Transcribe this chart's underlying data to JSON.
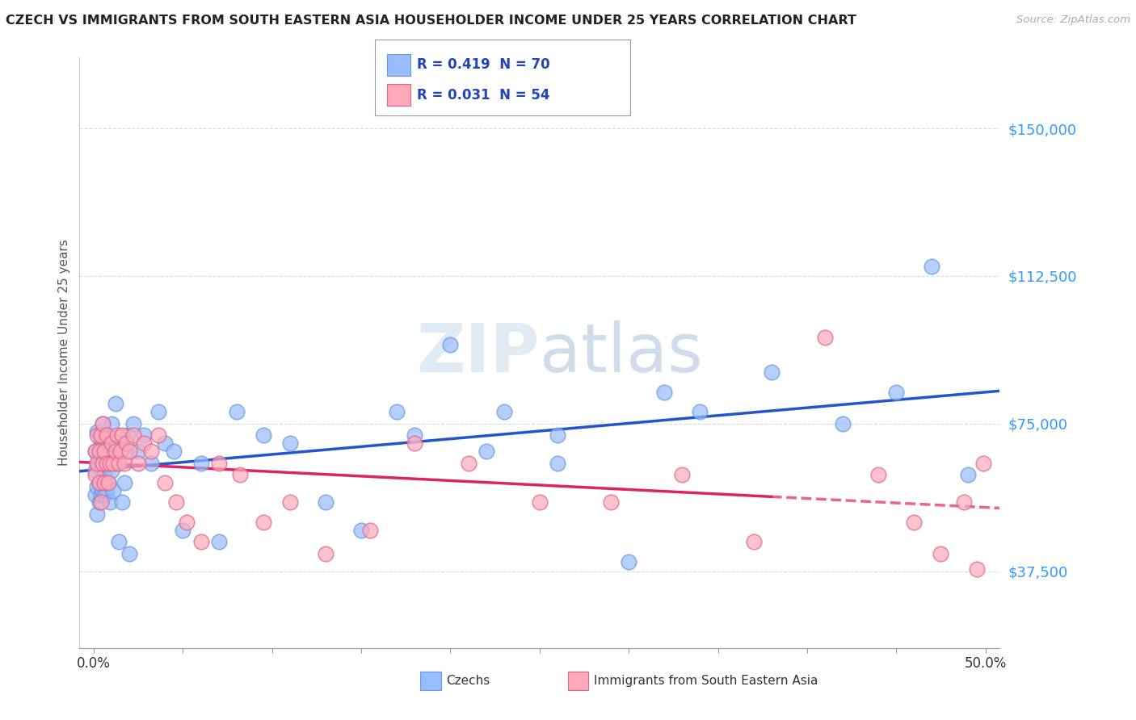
{
  "title": "CZECH VS IMMIGRANTS FROM SOUTH EASTERN ASIA HOUSEHOLDER INCOME UNDER 25 YEARS CORRELATION CHART",
  "source": "Source: ZipAtlas.com",
  "ylabel": "Householder Income Under 25 years",
  "xlim": [
    0.0,
    0.5
  ],
  "ylim": [
    18000,
    168000
  ],
  "yticks": [
    37500,
    75000,
    112500,
    150000
  ],
  "ytick_labels": [
    "$37,500",
    "$75,000",
    "$112,500",
    "$150,000"
  ],
  "background_color": "#ffffff",
  "grid_color": "#d0dde8",
  "czech_color": "#99bbff",
  "czech_edge_color": "#6699dd",
  "immigrant_color": "#ffaabb",
  "immigrant_edge_color": "#dd6688",
  "czech_line_color": "#2255cc",
  "immigrant_line_color": "#dd2266",
  "czech_R": 0.419,
  "czech_N": 70,
  "immigrant_R": 0.031,
  "immigrant_N": 54,
  "watermark": "ZIPAtlas",
  "legend_label1": "R = 0.419  N = 70",
  "legend_label2": "R = 0.031  N = 54",
  "bottom_label1": "Czechs",
  "bottom_label2": "Immigrants from South Eastern Asia",
  "czech_x": [
    0.001,
    0.001,
    0.001,
    0.002,
    0.002,
    0.002,
    0.002,
    0.003,
    0.003,
    0.003,
    0.003,
    0.004,
    0.004,
    0.004,
    0.004,
    0.005,
    0.005,
    0.005,
    0.005,
    0.006,
    0.006,
    0.006,
    0.007,
    0.007,
    0.008,
    0.008,
    0.009,
    0.009,
    0.01,
    0.01,
    0.011,
    0.012,
    0.013,
    0.014,
    0.015,
    0.016,
    0.017,
    0.018,
    0.019,
    0.02,
    0.022,
    0.025,
    0.028,
    0.032,
    0.036,
    0.04,
    0.045,
    0.05,
    0.06,
    0.07,
    0.08,
    0.095,
    0.11,
    0.13,
    0.15,
    0.17,
    0.2,
    0.23,
    0.26,
    0.3,
    0.34,
    0.18,
    0.22,
    0.26,
    0.32,
    0.38,
    0.42,
    0.45,
    0.47,
    0.49
  ],
  "czech_y": [
    63000,
    57000,
    68000,
    59000,
    65000,
    52000,
    73000,
    60000,
    55000,
    68000,
    72000,
    57000,
    63000,
    70000,
    66000,
    58000,
    64000,
    70000,
    75000,
    57000,
    62000,
    68000,
    58000,
    65000,
    60000,
    72000,
    55000,
    68000,
    63000,
    75000,
    58000,
    80000,
    65000,
    45000,
    70000,
    55000,
    60000,
    68000,
    72000,
    42000,
    75000,
    68000,
    72000,
    65000,
    78000,
    70000,
    68000,
    48000,
    65000,
    45000,
    78000,
    72000,
    70000,
    55000,
    48000,
    78000,
    95000,
    78000,
    65000,
    40000,
    78000,
    72000,
    68000,
    72000,
    83000,
    88000,
    75000,
    83000,
    115000,
    62000
  ],
  "immigrant_x": [
    0.001,
    0.001,
    0.002,
    0.002,
    0.003,
    0.003,
    0.004,
    0.004,
    0.005,
    0.005,
    0.006,
    0.006,
    0.007,
    0.007,
    0.008,
    0.009,
    0.01,
    0.011,
    0.012,
    0.013,
    0.014,
    0.015,
    0.016,
    0.017,
    0.018,
    0.02,
    0.022,
    0.025,
    0.028,
    0.032,
    0.036,
    0.04,
    0.046,
    0.052,
    0.06,
    0.07,
    0.082,
    0.095,
    0.11,
    0.13,
    0.155,
    0.18,
    0.21,
    0.25,
    0.29,
    0.33,
    0.37,
    0.41,
    0.44,
    0.46,
    0.475,
    0.488,
    0.495,
    0.499
  ],
  "immigrant_y": [
    62000,
    68000,
    65000,
    72000,
    60000,
    68000,
    55000,
    72000,
    65000,
    75000,
    60000,
    68000,
    65000,
    72000,
    60000,
    65000,
    70000,
    65000,
    68000,
    72000,
    65000,
    68000,
    72000,
    65000,
    70000,
    68000,
    72000,
    65000,
    70000,
    68000,
    72000,
    60000,
    55000,
    50000,
    45000,
    65000,
    62000,
    50000,
    55000,
    42000,
    48000,
    70000,
    65000,
    55000,
    55000,
    62000,
    45000,
    97000,
    62000,
    50000,
    42000,
    55000,
    38000,
    65000
  ]
}
